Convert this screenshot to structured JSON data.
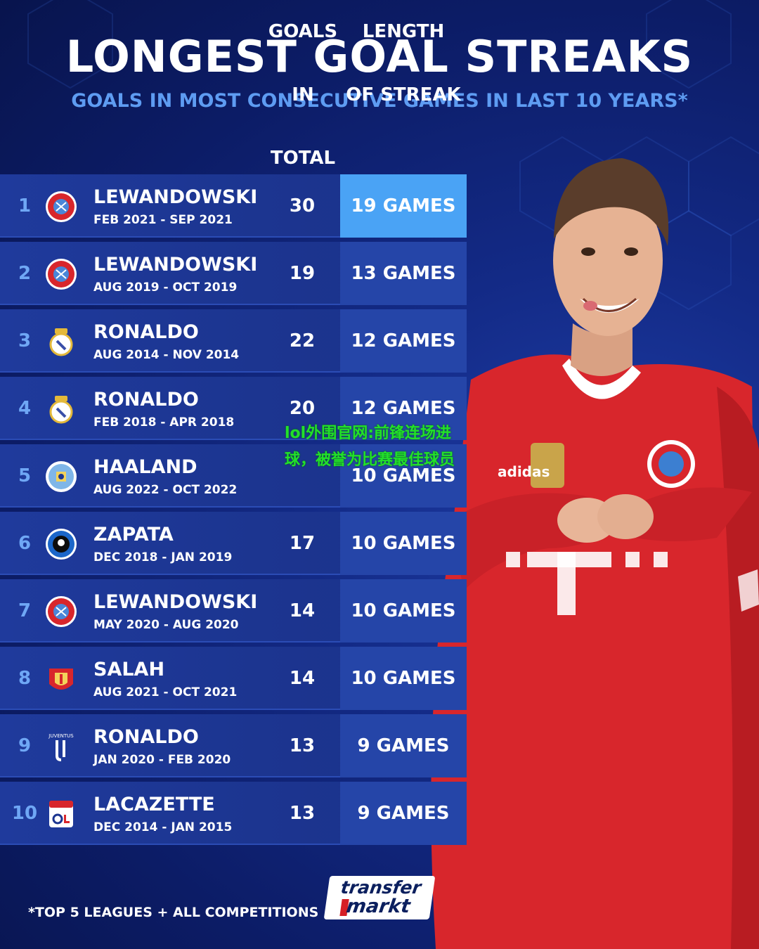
{
  "title": "LONGEST GOAL STREAKS",
  "subtitle": "GOALS IN MOST CONSECUTIVE GAMES IN LAST 10 YEARS*",
  "footnote": "*TOP 5 LEAGUES + ALL COMPETITIONS",
  "logo": {
    "line1": "transfer",
    "line2": "markt"
  },
  "overlay_text": "lol外围官网:前锋连场进球，被誉为比赛最佳球员",
  "colors": {
    "highlight": "#4aa3f5",
    "streak_default": "#2545a8",
    "row": "#1c3590",
    "rank": "#6fa7f5",
    "jersey": "#d8262c"
  },
  "chart_data": {
    "type": "table",
    "title": "LONGEST GOAL STREAKS",
    "subtitle": "GOALS IN MOST CONSECUTIVE GAMES IN LAST 10 YEARS*",
    "columns": [
      "",
      "",
      "",
      "GOALS IN TOTAL",
      "LENGTH OF STREAK"
    ],
    "col_goals_l1": "GOALS",
    "col_goals_l2": "IN TOTAL",
    "col_streak_l1": "LENGTH",
    "col_streak_l2": "OF STREAK",
    "rows": [
      {
        "rank": "1",
        "crest": "bayern-crest-icon",
        "player": "LEWANDOWSKI",
        "dates": "FEB 2021 - SEP 2021",
        "goals": "30",
        "streak": "19 GAMES",
        "streak_games": 19
      },
      {
        "rank": "2",
        "crest": "bayern-crest-icon",
        "player": "LEWANDOWSKI",
        "dates": "AUG 2019 - OCT 2019",
        "goals": "19",
        "streak": "13 GAMES",
        "streak_games": 13
      },
      {
        "rank": "3",
        "crest": "real-madrid-crest-icon",
        "player": "RONALDO",
        "dates": "AUG 2014 - NOV 2014",
        "goals": "22",
        "streak": "12 GAMES",
        "streak_games": 12
      },
      {
        "rank": "4",
        "crest": "real-madrid-crest-icon",
        "player": "RONALDO",
        "dates": "FEB 2018 - APR 2018",
        "goals": "20",
        "streak": "12 GAMES",
        "streak_games": 12
      },
      {
        "rank": "5",
        "crest": "man-city-crest-icon",
        "player": "HAALAND",
        "dates": "AUG 2022 - OCT 2022",
        "goals": "",
        "streak": "10 GAMES",
        "streak_games": 10
      },
      {
        "rank": "6",
        "crest": "atalanta-crest-icon",
        "player": "ZAPATA",
        "dates": "DEC 2018 - JAN 2019",
        "goals": "17",
        "streak": "10 GAMES",
        "streak_games": 10
      },
      {
        "rank": "7",
        "crest": "bayern-crest-icon",
        "player": "LEWANDOWSKI",
        "dates": "MAY 2020 - AUG 2020",
        "goals": "14",
        "streak": "10 GAMES",
        "streak_games": 10
      },
      {
        "rank": "8",
        "crest": "liverpool-crest-icon",
        "player": "SALAH",
        "dates": "AUG 2021 - OCT 2021",
        "goals": "14",
        "streak": "10 GAMES",
        "streak_games": 10
      },
      {
        "rank": "9",
        "crest": "juventus-crest-icon",
        "player": "RONALDO",
        "dates": "JAN 2020 - FEB 2020",
        "goals": "13",
        "streak": "9 GAMES",
        "streak_games": 9
      },
      {
        "rank": "10",
        "crest": "lyon-crest-icon",
        "player": "LACAZETTE",
        "dates": "DEC 2014 - JAN 2015",
        "goals": "13",
        "streak": "9 GAMES",
        "streak_games": 9
      }
    ]
  }
}
